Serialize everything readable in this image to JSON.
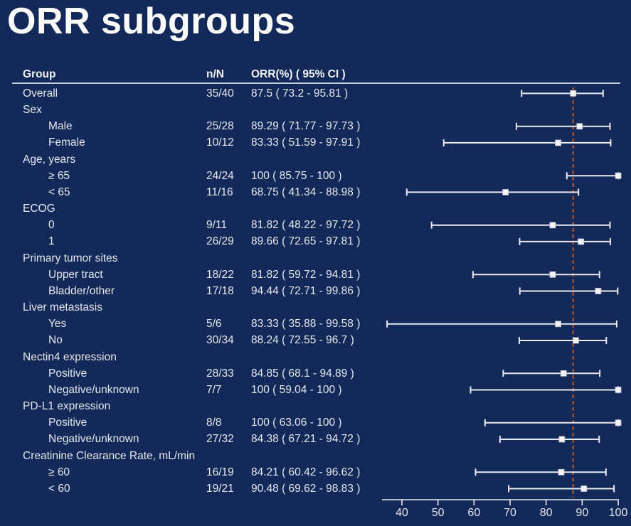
{
  "page": {
    "title": "ORR subgroups",
    "background_color": "#12295a"
  },
  "table": {
    "headers": {
      "group": "Group",
      "n_over_N": "n/N",
      "orr_ci": "ORR(%) ( 95% CI )"
    }
  },
  "chart_data": {
    "type": "scatter",
    "variant": "forest-plot",
    "title": "ORR subgroups",
    "xlabel": "",
    "xlim": [
      40,
      100
    ],
    "xticks": [
      40,
      50,
      60,
      70,
      80,
      90,
      100
    ],
    "grid": false,
    "legend": "none",
    "marker": "square",
    "reference_line": {
      "x": 87.5,
      "style": "dashed",
      "color": "#bc5a2e"
    },
    "colors": {
      "background": "#12295a",
      "title": "#ffffff",
      "text": "#e6e8ec",
      "bar": "#e9e9ef",
      "marker": "#f4f4f7",
      "axis": "#e9e9ef",
      "header_rule": "#c2c9d6"
    },
    "rows": [
      {
        "label": "Overall",
        "indent": 0,
        "header": false,
        "n_N": "35/40",
        "orr": "87.5 ( 73.2 - 95.81 )",
        "est": 87.5,
        "lo": 73.2,
        "hi": 95.81
      },
      {
        "label": "Sex",
        "indent": 0,
        "header": true
      },
      {
        "label": "Male",
        "indent": 1,
        "header": false,
        "n_N": "25/28",
        "orr": "89.29 ( 71.77 - 97.73 )",
        "est": 89.29,
        "lo": 71.77,
        "hi": 97.73
      },
      {
        "label": "Female",
        "indent": 1,
        "header": false,
        "n_N": "10/12",
        "orr": "83.33 ( 51.59 - 97.91 )",
        "est": 83.33,
        "lo": 51.59,
        "hi": 97.91
      },
      {
        "label": "Age, years",
        "indent": 0,
        "header": true
      },
      {
        "label": "≥ 65",
        "indent": 1,
        "header": false,
        "n_N": "24/24",
        "orr": "100 ( 85.75 - 100 )",
        "est": 100,
        "lo": 85.75,
        "hi": 100
      },
      {
        "label": "< 65",
        "indent": 1,
        "header": false,
        "n_N": "11/16",
        "orr": "68.75 ( 41.34 - 88.98 )",
        "est": 68.75,
        "lo": 41.34,
        "hi": 88.98
      },
      {
        "label": "ECOG",
        "indent": 0,
        "header": true
      },
      {
        "label": "0",
        "indent": 1,
        "header": false,
        "n_N": "9/11",
        "orr": "81.82 ( 48.22 - 97.72 )",
        "est": 81.82,
        "lo": 48.22,
        "hi": 97.72
      },
      {
        "label": "1",
        "indent": 1,
        "header": false,
        "n_N": "26/29",
        "orr": "89.66 ( 72.65 - 97.81 )",
        "est": 89.66,
        "lo": 72.65,
        "hi": 97.81
      },
      {
        "label": "Primary tumor sites",
        "indent": 0,
        "header": true
      },
      {
        "label": "Upper tract",
        "indent": 1,
        "header": false,
        "n_N": "18/22",
        "orr": "81.82 ( 59.72 - 94.81 )",
        "est": 81.82,
        "lo": 59.72,
        "hi": 94.81
      },
      {
        "label": "Bladder/other",
        "indent": 1,
        "header": false,
        "n_N": "17/18",
        "orr": "94.44 ( 72.71 - 99.86 )",
        "est": 94.44,
        "lo": 72.71,
        "hi": 99.86
      },
      {
        "label": "Liver metastasis",
        "indent": 0,
        "header": true
      },
      {
        "label": "Yes",
        "indent": 1,
        "header": false,
        "n_N": "5/6",
        "orr": "83.33 ( 35.88 - 99.58 )",
        "est": 83.33,
        "lo": 35.88,
        "hi": 99.58
      },
      {
        "label": "No",
        "indent": 1,
        "header": false,
        "n_N": "30/34",
        "orr": "88.24 ( 72.55 - 96.7 )",
        "est": 88.24,
        "lo": 72.55,
        "hi": 96.7
      },
      {
        "label": "Nectin4 expression",
        "indent": 0,
        "header": true
      },
      {
        "label": "Positive",
        "indent": 1,
        "header": false,
        "n_N": "28/33",
        "orr": "84.85 ( 68.1 - 94.89 )",
        "est": 84.85,
        "lo": 68.1,
        "hi": 94.89
      },
      {
        "label": "Negative/unknown",
        "indent": 1,
        "header": false,
        "n_N": "7/7",
        "orr": "100 ( 59.04 - 100 )",
        "est": 100,
        "lo": 59.04,
        "hi": 100
      },
      {
        "label": "PD-L1 expression",
        "indent": 0,
        "header": true
      },
      {
        "label": "Positive",
        "indent": 1,
        "header": false,
        "n_N": "8/8",
        "orr": "100 ( 63.06 - 100 )",
        "est": 100,
        "lo": 63.06,
        "hi": 100
      },
      {
        "label": "Negative/unknown",
        "indent": 1,
        "header": false,
        "n_N": "27/32",
        "orr": "84.38 ( 67.21 - 94.72 )",
        "est": 84.38,
        "lo": 67.21,
        "hi": 94.72
      },
      {
        "label": "Creatinine Clearance Rate, mL/min",
        "indent": 0,
        "header": true
      },
      {
        "label": "≥ 60",
        "indent": 1,
        "header": false,
        "n_N": "16/19",
        "orr": "84.21 ( 60.42 - 96.62 )",
        "est": 84.21,
        "lo": 60.42,
        "hi": 96.62
      },
      {
        "label": "< 60",
        "indent": 1,
        "header": false,
        "n_N": "19/21",
        "orr": "90.48 ( 69.62 - 98.83 )",
        "est": 90.48,
        "lo": 69.62,
        "hi": 98.83
      }
    ]
  }
}
